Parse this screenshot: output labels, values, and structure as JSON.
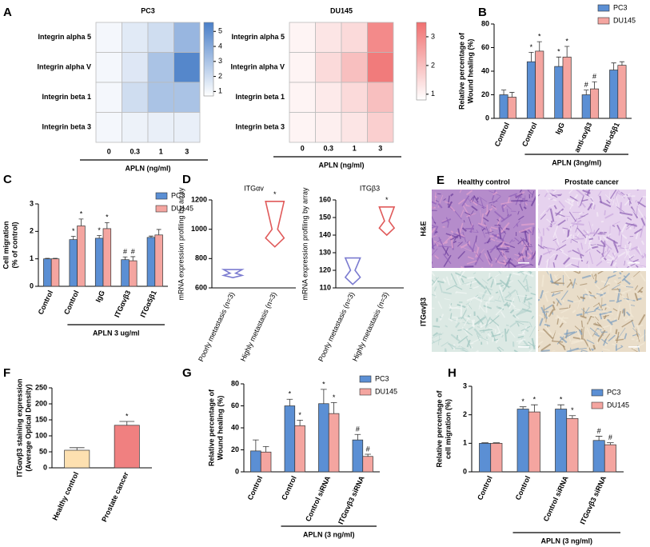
{
  "chart_data": [
    {
      "type": "heatmap",
      "panel": "A",
      "title": "PC3",
      "rows": [
        "Integrin alpha 5",
        "Integrin alpha V",
        "Integrin beta 1",
        "Integrin beta 3"
      ],
      "x": [
        0,
        0.3,
        1,
        3
      ],
      "xlabel": "APLN (ng/ml)",
      "values": [
        [
          1,
          1.5,
          2,
          3.5
        ],
        [
          1,
          1.6,
          3,
          5.3
        ],
        [
          1,
          2,
          3,
          3
        ],
        [
          1,
          1.2,
          1.3,
          1.3
        ]
      ],
      "zlim": [
        0.7,
        5.6
      ],
      "zticks": [
        1,
        2,
        3,
        4,
        5
      ],
      "colors": [
        "#ffffff",
        "#4a7fc8"
      ]
    },
    {
      "type": "heatmap",
      "title": "DU145",
      "rows": [
        "Integrin alpha 5",
        "Integrin alpha V",
        "Integrin beta 1",
        "Integrin beta 3"
      ],
      "x": [
        0,
        0.3,
        1,
        3
      ],
      "xlabel": "APLN (ng/ml)",
      "values": [
        [
          1,
          1.3,
          1.5,
          3
        ],
        [
          1,
          1.5,
          2,
          3.3
        ],
        [
          1,
          1.2,
          1.5,
          2
        ],
        [
          1,
          1.1,
          1.3,
          1.7
        ]
      ],
      "zlim": [
        0.8,
        3.5
      ],
      "zticks": [
        1,
        2,
        3
      ],
      "colors": [
        "#ffffff",
        "#f07070"
      ]
    },
    {
      "type": "bar",
      "panel": "B",
      "ylabel": [
        "Relative percentage of",
        "Wound healing (%)"
      ],
      "categories": [
        "Control",
        "Control",
        "IgG",
        "anti-αvβ3",
        "anti-α5β1"
      ],
      "group_label": "APLN (3ng/ml)",
      "ylim": [
        0,
        80
      ],
      "yticks": [
        0,
        20,
        40,
        60,
        80
      ],
      "series": [
        {
          "name": "PC3",
          "color": "#5b8fd4",
          "values": [
            20,
            48,
            44,
            20,
            41
          ],
          "errors": [
            4,
            8,
            8,
            4,
            6
          ],
          "markers": [
            null,
            "*",
            "*",
            "#",
            null
          ]
        },
        {
          "name": "DU145",
          "color": "#f4a5a0",
          "values": [
            18,
            57,
            52,
            25,
            45
          ],
          "errors": [
            4,
            8,
            9,
            6,
            3
          ],
          "markers": [
            null,
            "*",
            "*",
            "#",
            null
          ]
        }
      ]
    },
    {
      "type": "bar",
      "panel": "C",
      "ylabel": [
        "Cell migration",
        "(% of control)"
      ],
      "categories": [
        "Control",
        "Control",
        "IgG",
        "ITGαvβ3",
        "ITGα5β1"
      ],
      "group_label": "APLN 3 ug/ml",
      "ylim": [
        0,
        3
      ],
      "yticks": [
        0,
        1,
        2,
        3
      ],
      "series": [
        {
          "name": "PC3",
          "color": "#5b8fd4",
          "values": [
            1,
            1.7,
            1.75,
            0.97,
            1.78
          ],
          "errors": [
            0.02,
            0.12,
            0.1,
            0.1,
            0.05
          ],
          "markers": [
            null,
            "*",
            "*",
            "#",
            null
          ]
        },
        {
          "name": "DU145",
          "color": "#f4a5a0",
          "values": [
            1,
            2.2,
            2.1,
            0.93,
            1.87
          ],
          "errors": [
            0.02,
            0.25,
            0.22,
            0.15,
            0.2
          ],
          "markers": [
            null,
            "*",
            "*",
            "#",
            null
          ]
        }
      ]
    },
    {
      "type": "violin",
      "panel": "D",
      "title": "ITGαv",
      "ylabel": "mRNA expression profiling by array",
      "categories": [
        "Poorly metastasis (n=3)",
        "Highly metastasis (n=3)"
      ],
      "ylim": [
        600,
        1200
      ],
      "yticks": [
        600,
        800,
        1000,
        1200
      ],
      "min": [
        670,
        880
      ],
      "median": [
        700,
        1000
      ],
      "max": [
        725,
        1190
      ],
      "colors": [
        "#7b7bd0",
        "#e05a5a"
      ],
      "markers": [
        null,
        "*"
      ]
    },
    {
      "type": "violin",
      "title": "ITGβ3",
      "ylabel": "mRNA expression profiling by array",
      "categories": [
        "Poorly metastasis (n=3)",
        "Highly metastasis (n=3)"
      ],
      "ylim": [
        110,
        160
      ],
      "yticks": [
        110,
        120,
        130,
        140,
        150,
        160
      ],
      "min": [
        112,
        140
      ],
      "median": [
        120,
        148
      ],
      "max": [
        127,
        156
      ],
      "colors": [
        "#7b7bd0",
        "#e05a5a"
      ],
      "markers": [
        null,
        "*"
      ]
    },
    {
      "type": "bar",
      "panel": "F",
      "ylabel": [
        "ITGαvβ3 staining expression",
        "(Average Optical Density)"
      ],
      "categories": [
        "Healthy control",
        "Prostate cancer"
      ],
      "ylim": [
        0,
        250
      ],
      "yticks": [
        0,
        50,
        100,
        150,
        200,
        250
      ],
      "values": [
        55,
        133
      ],
      "errors": [
        8,
        12
      ],
      "colors": [
        "#fde0b0",
        "#f08080"
      ],
      "markers": [
        null,
        "*"
      ]
    },
    {
      "type": "bar",
      "panel": "G",
      "ylabel": [
        "Relative percentage of",
        "Wound healing (%)"
      ],
      "categories": [
        "Control",
        "Control",
        "Control siRNA",
        "ITGαvβ3 siRNA"
      ],
      "group_label": "APLN (3 ng/ml)",
      "ylim": [
        0,
        80
      ],
      "yticks": [
        0,
        20,
        40,
        60,
        80
      ],
      "series": [
        {
          "name": "PC3",
          "color": "#5b8fd4",
          "values": [
            19,
            60,
            62,
            29
          ],
          "errors": [
            10,
            6,
            13,
            5
          ],
          "markers": [
            null,
            "*",
            "*",
            "#"
          ]
        },
        {
          "name": "DU145",
          "color": "#f4a5a0",
          "values": [
            18,
            42,
            53,
            14
          ],
          "errors": [
            5,
            5,
            10,
            2
          ],
          "markers": [
            null,
            "*",
            "*",
            "#"
          ]
        }
      ]
    },
    {
      "type": "bar",
      "panel": "H",
      "ylabel": [
        "Relative percentage of",
        "cell migration (%)"
      ],
      "categories": [
        "Control",
        "Control",
        "Control siRNA",
        "ITGαvβ3 siRNA"
      ],
      "group_label": "APLN (3 ng/ml)",
      "ylim": [
        0,
        3
      ],
      "yticks": [
        0,
        1,
        2,
        3
      ],
      "series": [
        {
          "name": "PC3",
          "color": "#5b8fd4",
          "values": [
            1,
            2.2,
            2.2,
            1.1
          ],
          "errors": [
            0.02,
            0.08,
            0.15,
            0.15
          ],
          "markers": [
            null,
            "*",
            "*",
            "#"
          ]
        },
        {
          "name": "DU145",
          "color": "#f4a5a0",
          "values": [
            1,
            2.1,
            1.87,
            0.95
          ],
          "errors": [
            0.02,
            0.25,
            0.1,
            0.07
          ],
          "markers": [
            null,
            "*",
            "*",
            "#"
          ]
        }
      ]
    }
  ],
  "panel_e": {
    "panel": "E",
    "columns": [
      "Healthy control",
      "Prostate cancer"
    ],
    "rows": [
      "H&E",
      "ITGαvβ3"
    ]
  }
}
